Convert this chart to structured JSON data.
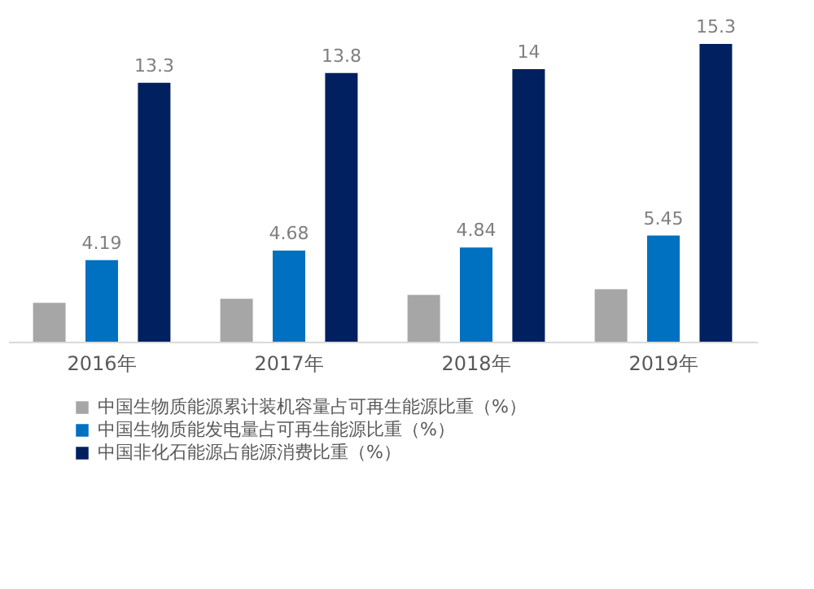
{
  "chart_data": {
    "type": "bar",
    "categories": [
      "2016年",
      "2017年",
      "2018年",
      "2019年"
    ],
    "series": [
      {
        "name": "中国生物质能源累计装机容量占可再生能源比重（%）",
        "color": "#a6a6a6",
        "values": [
          2.0,
          2.2,
          2.4,
          2.7
        ]
      },
      {
        "name": "中国生物质能发电量占可再生能源比重（%）",
        "color": "#0070c0",
        "values": [
          4.19,
          4.68,
          4.84,
          5.45
        ],
        "value_labels": [
          "4.19",
          "4.68",
          "4.84",
          "5.45"
        ]
      },
      {
        "name": "中国非化石能源占能源消费比重（%）",
        "color": "#002060",
        "values": [
          13.3,
          13.8,
          14,
          15.3
        ],
        "value_labels": [
          "13.3",
          "13.8",
          "14",
          "15.3"
        ]
      }
    ],
    "legend": "bottom left",
    "grid": false
  }
}
